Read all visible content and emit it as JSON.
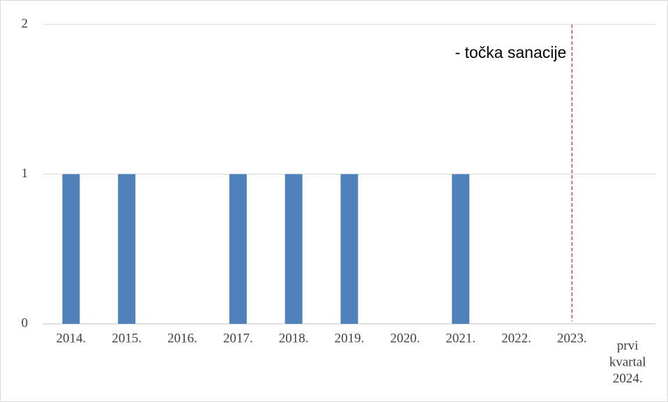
{
  "chart_data": {
    "type": "bar",
    "categories": [
      "2014.",
      "2015.",
      "2016.",
      "2017.",
      "2018.",
      "2019.",
      "2020.",
      "2021.",
      "2022.",
      "2023.",
      "prvi kvartal 2024."
    ],
    "values": [
      1,
      1,
      0,
      1,
      1,
      1,
      0,
      1,
      0,
      0,
      0
    ],
    "color": "#4f81bd",
    "ylim": [
      0,
      2
    ],
    "yticks": [
      0,
      1,
      2
    ],
    "grid": true,
    "annotation": {
      "text": "- točka sanacije",
      "x": "2023.",
      "color": "#c0504d"
    }
  }
}
